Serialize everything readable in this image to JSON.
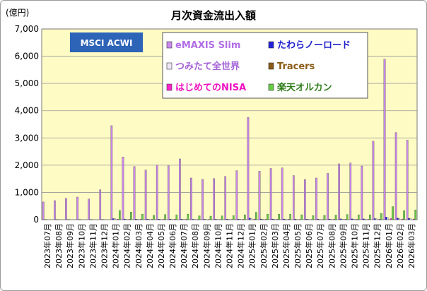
{
  "chart_data": {
    "type": "bar",
    "title": "月次資金流出入額",
    "unit_label": "(億円)",
    "badge": "MSCI ACWI",
    "ylim": [
      0,
      7000
    ],
    "y_ticks": [
      "0",
      "1,000",
      "2,000",
      "3,000",
      "4,000",
      "5,000",
      "6,000",
      "7,000"
    ],
    "y_tick_values": [
      0,
      1000,
      2000,
      3000,
      4000,
      5000,
      6000,
      7000
    ],
    "grid": true,
    "legend_position": "top-right",
    "categories": [
      "2023年07月",
      "2023年08月",
      "2023年09月",
      "2023年10月",
      "2023年11月",
      "2023年12月",
      "2024年01月",
      "2024年02月",
      "2024年03月",
      "2024年04月",
      "2024年05月",
      "2024年06月",
      "2024年07月",
      "2024年08月",
      "2024年09月",
      "2024年10月",
      "2024年11月",
      "2024年12月",
      "2025年01月",
      "2025年02月",
      "2025年03月",
      "2025年04月",
      "2025年05月",
      "2025年06月",
      "2025年07月",
      "2025年08月",
      "2025年09月",
      "2025年10月",
      "2025年11月",
      "2025年12月",
      "2026年01月",
      "2026年02月",
      "2026年03月"
    ],
    "series": [
      {
        "name": "eMAXIS Slim",
        "color": "#cc88f0",
        "values": [
          650,
          700,
          780,
          830,
          760,
          1100,
          3450,
          2300,
          1950,
          1820,
          2000,
          1980,
          2230,
          1530,
          1480,
          1510,
          1590,
          1800,
          3750,
          1780,
          1880,
          1900,
          1620,
          1470,
          1530,
          1700,
          2050,
          2080,
          1970,
          2880,
          5890,
          3200,
          2920
        ]
      },
      {
        "name": "たわらノーロード",
        "color": "#2222dd",
        "values": [
          5,
          5,
          5,
          5,
          5,
          10,
          40,
          25,
          20,
          20,
          20,
          20,
          20,
          15,
          15,
          15,
          20,
          20,
          60,
          25,
          25,
          25,
          20,
          20,
          20,
          25,
          30,
          30,
          30,
          40,
          100,
          60,
          50
        ]
      },
      {
        "name": "つみたて全世界",
        "color": "#efe6f8",
        "values": [
          5,
          5,
          5,
          5,
          5,
          10,
          30,
          20,
          20,
          15,
          15,
          15,
          20,
          15,
          15,
          15,
          15,
          20,
          40,
          20,
          20,
          20,
          15,
          15,
          15,
          20,
          20,
          20,
          20,
          30,
          60,
          40,
          35
        ]
      },
      {
        "name": "Tracers",
        "color": "#8b5a14",
        "values": [
          0,
          0,
          0,
          0,
          0,
          0,
          0,
          0,
          0,
          0,
          0,
          0,
          0,
          0,
          0,
          0,
          0,
          0,
          0,
          0,
          0,
          0,
          0,
          0,
          0,
          0,
          0,
          0,
          0,
          0,
          0,
          0,
          0
        ]
      },
      {
        "name": "はじめてのNISA",
        "color": "#ff22cc",
        "values": [
          0,
          0,
          0,
          0,
          0,
          0,
          20,
          15,
          15,
          15,
          15,
          15,
          15,
          10,
          10,
          10,
          10,
          15,
          25,
          15,
          15,
          15,
          10,
          10,
          10,
          15,
          15,
          15,
          15,
          20,
          40,
          25,
          25
        ]
      },
      {
        "name": "楽天オルカン",
        "color": "#66cc44",
        "values": [
          0,
          0,
          0,
          0,
          0,
          0,
          340,
          280,
          200,
          160,
          190,
          180,
          200,
          140,
          130,
          140,
          150,
          180,
          270,
          200,
          200,
          200,
          180,
          150,
          160,
          170,
          190,
          180,
          180,
          230,
          480,
          330,
          360
        ]
      }
    ]
  }
}
